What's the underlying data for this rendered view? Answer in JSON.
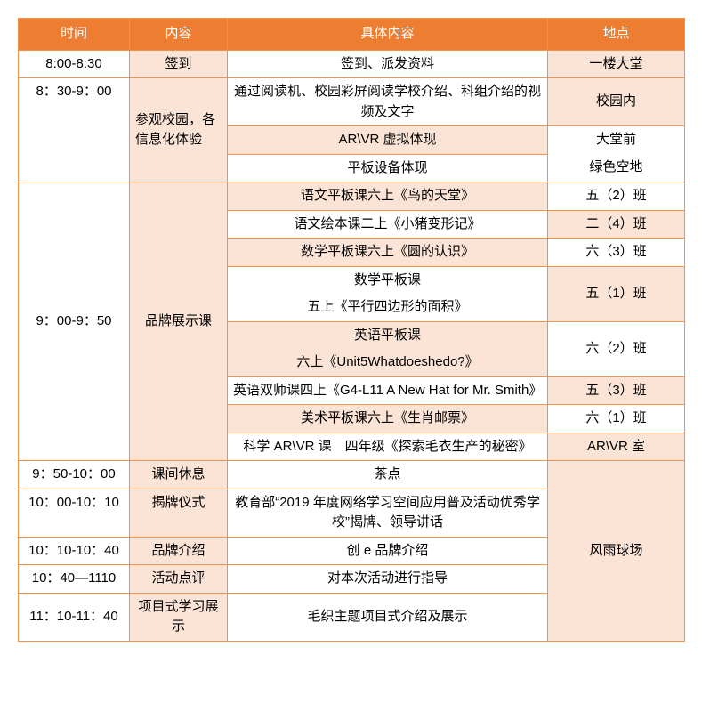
{
  "colors": {
    "header_bg": "#ed7d31",
    "header_text": "#ffffff",
    "border": "#ee934d",
    "shade": "#fbe4d5",
    "white": "#ffffff",
    "body_text": "#000000"
  },
  "type": "table",
  "fontsize": 15,
  "columns": {
    "time": "时间",
    "content": "内容",
    "detail": "具体内容",
    "location": "地点"
  },
  "rows": [
    {
      "time": "8:00-8:30",
      "content": "签到",
      "detail": "签到、派发资料",
      "location": "一楼大堂"
    },
    {
      "time": "8：30-9：00",
      "content": "参观校园，各信息化体验",
      "details": [
        {
          "detail": "通过阅读机、校园彩屏阅读学校介绍、科组介绍的视频及文字",
          "location": "校园内"
        },
        {
          "detail": "AR\\VR 虚拟体现",
          "location_top": "大堂前"
        },
        {
          "detail": "平板设备体现",
          "location_bottom": "绿色空地"
        }
      ]
    },
    {
      "time": "9：00-9：50",
      "content": "品牌展示课",
      "details": [
        {
          "detail": "语文平板课六上《鸟的天堂》",
          "location": "五（2）班"
        },
        {
          "detail": "语文绘本课二上《小猪变形记》",
          "location": "二（4）班"
        },
        {
          "detail": "数学平板课六上《圆的认识》",
          "location": "六（3）班"
        },
        {
          "detail_l1": "数学平板课",
          "detail_l2": "五上《平行四边形的面积》",
          "location": "五（1）班"
        },
        {
          "detail_l1": "英语平板课",
          "detail_l2": "六上《Unit5Whatdoeshedo?》",
          "location": "六（2）班"
        },
        {
          "detail": "英语双师课四上《G4-L11 A New Hat for Mr. Smith》",
          "location": "五（3）班"
        },
        {
          "detail": "美术平板课六上《生肖邮票》",
          "location": "六（1）班"
        },
        {
          "detail": "科学 AR\\VR 课　四年级《探索毛衣生产的秘密》",
          "location": "AR\\VR 室"
        }
      ]
    },
    {
      "time": "9：50-10：00",
      "content": "课间休息",
      "detail": "茶点"
    },
    {
      "time": "10：00-10：10",
      "content": "揭牌仪式",
      "detail": "教育部“2019 年度网络学习空间应用普及活动优秀学校”揭牌、领导讲话",
      "location_merged": "风雨球场"
    },
    {
      "time": "10：10-10：40",
      "content": "品牌介绍",
      "detail": "创 e 品牌介绍"
    },
    {
      "time": "10：40—1110",
      "content": "活动点评",
      "detail": "对本次活动进行指导"
    },
    {
      "time": "11：10-11：40",
      "content": "项目式学习展示",
      "detail": "毛织主题项目式介绍及展示"
    }
  ]
}
